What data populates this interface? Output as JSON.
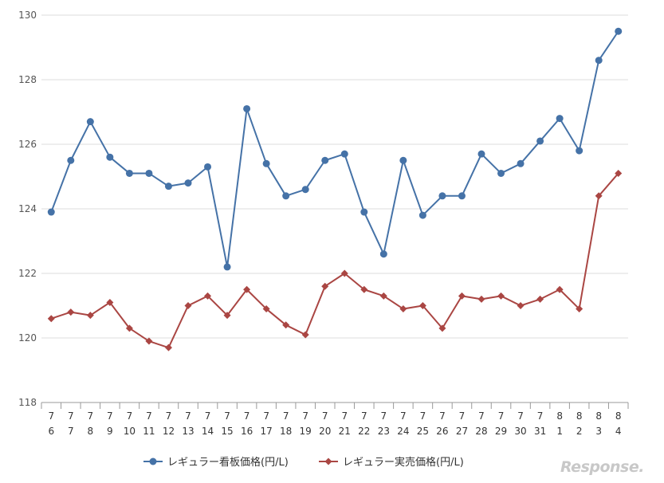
{
  "chart_data": {
    "type": "line",
    "title": "",
    "xlabel": "",
    "ylabel": "",
    "ylim": [
      118,
      130
    ],
    "yticks": [
      118,
      120,
      122,
      124,
      126,
      128,
      130
    ],
    "grid": true,
    "legend_position": "bottom",
    "categories": [
      {
        "month": "7",
        "day": "6"
      },
      {
        "month": "7",
        "day": "7"
      },
      {
        "month": "7",
        "day": "8"
      },
      {
        "month": "7",
        "day": "9"
      },
      {
        "month": "7",
        "day": "10"
      },
      {
        "month": "7",
        "day": "11"
      },
      {
        "month": "7",
        "day": "12"
      },
      {
        "month": "7",
        "day": "13"
      },
      {
        "month": "7",
        "day": "14"
      },
      {
        "month": "7",
        "day": "15"
      },
      {
        "month": "7",
        "day": "16"
      },
      {
        "month": "7",
        "day": "17"
      },
      {
        "month": "7",
        "day": "18"
      },
      {
        "month": "7",
        "day": "19"
      },
      {
        "month": "7",
        "day": "20"
      },
      {
        "month": "7",
        "day": "21"
      },
      {
        "month": "7",
        "day": "22"
      },
      {
        "month": "7",
        "day": "23"
      },
      {
        "month": "7",
        "day": "24"
      },
      {
        "month": "7",
        "day": "25"
      },
      {
        "month": "7",
        "day": "26"
      },
      {
        "month": "7",
        "day": "27"
      },
      {
        "month": "7",
        "day": "28"
      },
      {
        "month": "7",
        "day": "29"
      },
      {
        "month": "7",
        "day": "30"
      },
      {
        "month": "7",
        "day": "31"
      },
      {
        "month": "8",
        "day": "1"
      },
      {
        "month": "8",
        "day": "2"
      },
      {
        "month": "8",
        "day": "3"
      },
      {
        "month": "8",
        "day": "4"
      }
    ],
    "series": [
      {
        "name": "レギュラー看板価格(円/L)",
        "color": "#4572a7",
        "marker": "circle",
        "values": [
          123.9,
          125.5,
          126.7,
          125.6,
          125.1,
          125.1,
          124.7,
          124.8,
          125.3,
          122.2,
          127.1,
          125.4,
          124.4,
          124.6,
          125.5,
          125.7,
          123.9,
          122.6,
          125.5,
          123.8,
          124.4,
          124.4,
          125.7,
          125.1,
          125.4,
          126.1,
          126.8,
          125.8,
          128.6,
          129.5
        ]
      },
      {
        "name": "レギュラー実売価格(円/L)",
        "color": "#aa4643",
        "marker": "diamond",
        "values": [
          120.6,
          120.8,
          120.7,
          121.1,
          120.3,
          119.9,
          119.7,
          121.0,
          121.3,
          120.7,
          121.5,
          120.9,
          120.4,
          120.1,
          121.6,
          122.0,
          121.5,
          121.3,
          120.9,
          121.0,
          120.3,
          121.3,
          121.2,
          121.3,
          121.0,
          121.2,
          121.5,
          120.9,
          124.4,
          125.1
        ]
      }
    ]
  },
  "watermark": {
    "text": "Response."
  }
}
